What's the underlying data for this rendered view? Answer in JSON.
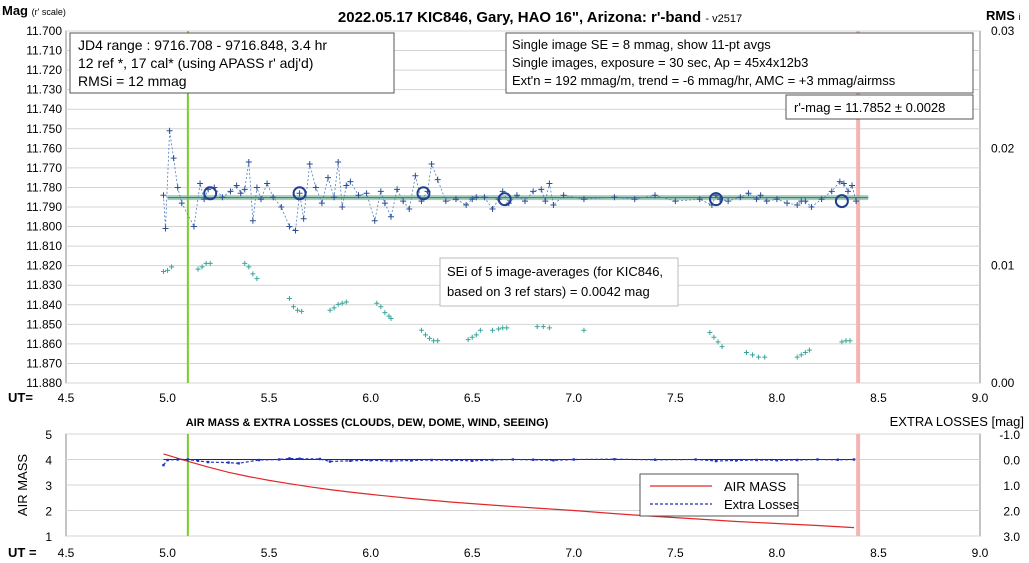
{
  "chart_data": [
    {
      "type": "scatter",
      "title": "2022.05.17 KIC846, Gary, HAO 16\", Arizona: r'-band",
      "title_suffix": "- v2517",
      "ylabel": "Mag",
      "ylabel_sub": "(r' scale)",
      "y2label": "RMS",
      "y2label_sub": "i",
      "xlabel": "UT=",
      "xlim": [
        4.5,
        9.0
      ],
      "ylim": [
        11.7,
        11.88
      ],
      "y_inverted": true,
      "y2lim": [
        0.0,
        0.03
      ],
      "x_ticks": [
        "4.5",
        "5.0",
        "5.5",
        "6.0",
        "6.5",
        "7.0",
        "7.5",
        "8.0",
        "8.5",
        "9.0"
      ],
      "y_ticks": [
        "11.700",
        "11.710",
        "11.720",
        "11.730",
        "11.740",
        "11.750",
        "11.760",
        "11.770",
        "11.780",
        "11.790",
        "11.800",
        "11.810",
        "11.820",
        "11.830",
        "11.840",
        "11.850",
        "11.860",
        "11.870",
        "11.880"
      ],
      "y2_ticks": [
        "0.00",
        "0.01",
        "0.02",
        "0.03"
      ],
      "grid": true,
      "info_box_left": [
        "JD4 range : 9716.708 - 9716.848,  3.4  hr",
        "12 ref *, 17 cal* (using APASS r' adj'd)",
        "RMSi = 12 mmag"
      ],
      "info_box_right": [
        "Single image SE = 8 mmag, show  11-pt avgs",
        "Single images, exposure = 30 sec, Ap = 45x4x12b3",
        "Ext'n = 192 mmag/m, trend = -6  mmag/hr, AMC = +3 mmag/airmss"
      ],
      "result_box": "r'-mag = 11.7852 ± 0.0028",
      "annotation_lines": [
        "SEi of 5 image-averages (for KIC846,",
        "based on 3 ref stars) = 0.0042 mag"
      ],
      "mean_mag": 11.7852,
      "markers_x": [
        5.1,
        8.4
      ],
      "series": [
        {
          "role": "single-image magnitudes",
          "x": [
            4.98,
            4.99,
            5.01,
            5.03,
            5.05,
            5.07,
            5.13,
            5.16,
            5.18,
            5.2,
            5.23,
            5.27,
            5.31,
            5.34,
            5.36,
            5.38,
            5.4,
            5.42,
            5.44,
            5.46,
            5.49,
            5.52,
            5.56,
            5.6,
            5.63,
            5.65,
            5.67,
            5.7,
            5.73,
            5.76,
            5.79,
            5.82,
            5.84,
            5.86,
            5.88,
            5.9,
            5.94,
            5.98,
            6.02,
            6.05,
            6.07,
            6.1,
            6.13,
            6.16,
            6.19,
            6.22,
            6.25,
            6.28,
            6.3,
            6.33,
            6.37,
            6.42,
            6.47,
            6.5,
            6.52,
            6.56,
            6.6,
            6.63,
            6.65,
            6.68,
            6.72,
            6.76,
            6.8,
            6.84,
            6.86,
            6.88,
            6.9,
            6.95,
            7.05,
            7.2,
            7.3,
            7.4,
            7.5,
            7.62,
            7.68,
            7.7,
            7.72,
            7.76,
            7.82,
            7.86,
            7.9,
            7.92,
            7.95,
            8.0,
            8.05,
            8.1,
            8.12,
            8.14,
            8.17,
            8.22,
            8.27,
            8.31,
            8.33,
            8.35,
            8.37,
            8.39
          ],
          "y": [
            11.784,
            11.801,
            11.751,
            11.765,
            11.78,
            11.788,
            11.8,
            11.778,
            11.786,
            11.781,
            11.78,
            11.785,
            11.782,
            11.779,
            11.783,
            11.781,
            11.767,
            11.797,
            11.78,
            11.786,
            11.778,
            11.785,
            11.79,
            11.8,
            11.802,
            11.783,
            11.796,
            11.768,
            11.78,
            11.788,
            11.775,
            11.785,
            11.767,
            11.79,
            11.779,
            11.777,
            11.784,
            11.783,
            11.797,
            11.782,
            11.788,
            11.795,
            11.781,
            11.787,
            11.791,
            11.774,
            11.787,
            11.782,
            11.768,
            11.776,
            11.787,
            11.786,
            11.789,
            11.786,
            11.785,
            11.785,
            11.791,
            11.786,
            11.782,
            11.788,
            11.784,
            11.787,
            11.782,
            11.781,
            11.787,
            11.778,
            11.789,
            11.784,
            11.786,
            11.785,
            11.786,
            11.784,
            11.787,
            11.786,
            11.789,
            11.784,
            11.786,
            11.787,
            11.785,
            11.783,
            11.786,
            11.784,
            11.787,
            11.786,
            11.788,
            11.789,
            11.787,
            11.787,
            11.79,
            11.786,
            11.782,
            11.777,
            11.778,
            11.782,
            11.779,
            11.787
          ]
        },
        {
          "role": "image-averages",
          "x": [
            5.21,
            5.65,
            6.26,
            6.66,
            7.7,
            8.32
          ],
          "y": [
            11.783,
            11.783,
            11.783,
            11.786,
            11.786,
            11.787
          ]
        },
        {
          "role": "RMSi",
          "axis": "y2",
          "x": [
            4.98,
            5.0,
            5.02,
            5.15,
            5.17,
            5.19,
            5.21,
            5.38,
            5.4,
            5.42,
            5.44,
            5.6,
            5.62,
            5.64,
            5.66,
            5.8,
            5.82,
            5.84,
            5.86,
            5.88,
            6.03,
            6.05,
            6.07,
            6.09,
            6.1,
            6.25,
            6.27,
            6.29,
            6.31,
            6.33,
            6.48,
            6.5,
            6.52,
            6.54,
            6.6,
            6.63,
            6.65,
            6.67,
            6.82,
            6.85,
            6.88,
            7.05,
            7.67,
            7.69,
            7.71,
            7.73,
            7.85,
            7.88,
            7.91,
            7.94,
            8.1,
            8.12,
            8.14,
            8.16,
            8.32,
            8.34,
            8.36
          ],
          "y": [
            0.0095,
            0.0096,
            0.0099,
            0.0097,
            0.0099,
            0.0102,
            0.0102,
            0.0102,
            0.0099,
            0.0093,
            0.0089,
            0.0072,
            0.0065,
            0.0062,
            0.0061,
            0.0062,
            0.0064,
            0.0067,
            0.0068,
            0.0069,
            0.0068,
            0.0065,
            0.006,
            0.0057,
            0.0055,
            0.0045,
            0.0041,
            0.0038,
            0.0036,
            0.0036,
            0.0037,
            0.0039,
            0.0041,
            0.0045,
            0.0045,
            0.0046,
            0.0047,
            0.0047,
            0.0048,
            0.0048,
            0.0047,
            0.0045,
            0.0043,
            0.0039,
            0.0035,
            0.0031,
            0.0026,
            0.0024,
            0.0022,
            0.0022,
            0.0022,
            0.0024,
            0.0026,
            0.0028,
            0.0035,
            0.0036,
            0.0036
          ]
        }
      ]
    },
    {
      "type": "line",
      "title": "AIR MASS & EXTRA LOSSES (CLOUDS, DEW, DOME, WIND, SEEING)",
      "ylabel": "AIR MASS",
      "y2label": "EXTRA LOSSES [mag]",
      "xlabel": "UT =",
      "xlim": [
        4.5,
        9.0
      ],
      "ylim": [
        1,
        5
      ],
      "y2lim": [
        3.0,
        -1.0
      ],
      "x_ticks": [
        "4.5",
        "5.0",
        "5.5",
        "6.0",
        "6.5",
        "7.0",
        "7.5",
        "8.0",
        "8.5",
        "9.0"
      ],
      "y_ticks": [
        "1",
        "2",
        "3",
        "4",
        "5"
      ],
      "y2_ticks": [
        "3.0",
        "2.0",
        "1.0",
        "0.0",
        "-1.0"
      ],
      "legend_position": "inside-lower-right",
      "markers_x": [
        5.1,
        8.4
      ],
      "series": [
        {
          "name": "AIR MASS",
          "color": "#e0282a",
          "x": [
            4.98,
            5.1,
            5.2,
            5.3,
            5.4,
            5.5,
            5.6,
            5.7,
            5.8,
            5.9,
            6.0,
            6.2,
            6.4,
            6.6,
            6.8,
            7.0,
            7.2,
            7.4,
            7.6,
            7.8,
            8.0,
            8.2,
            8.38
          ],
          "y": [
            4.22,
            3.93,
            3.7,
            3.5,
            3.33,
            3.18,
            3.05,
            2.93,
            2.82,
            2.72,
            2.63,
            2.47,
            2.33,
            2.21,
            2.1,
            2.0,
            1.88,
            1.77,
            1.67,
            1.57,
            1.49,
            1.41,
            1.33
          ]
        },
        {
          "name": "Extra Losses",
          "color": "#2233bb",
          "x": [
            4.98,
            5.0,
            5.05,
            5.1,
            5.15,
            5.2,
            5.3,
            5.35,
            5.45,
            5.55,
            5.6,
            5.65,
            5.75,
            5.8,
            5.9,
            6.0,
            6.1,
            6.2,
            6.3,
            6.4,
            6.5,
            6.6,
            6.7,
            6.8,
            6.9,
            7.0,
            7.2,
            7.4,
            7.6,
            7.7,
            7.8,
            7.9,
            8.0,
            8.1,
            8.2,
            8.3,
            8.38
          ],
          "y": [
            0.22,
            0.02,
            0.0,
            0.0,
            0.05,
            0.1,
            0.12,
            0.15,
            0.02,
            0.0,
            -0.04,
            -0.03,
            -0.02,
            0.08,
            0.05,
            0.03,
            0.06,
            0.04,
            0.02,
            0.03,
            0.05,
            0.02,
            0.0,
            0.01,
            0.03,
            0.0,
            -0.01,
            0.01,
            0.0,
            0.06,
            0.04,
            0.02,
            0.03,
            0.02,
            0.0,
            0.01,
            0.0
          ]
        }
      ]
    }
  ]
}
